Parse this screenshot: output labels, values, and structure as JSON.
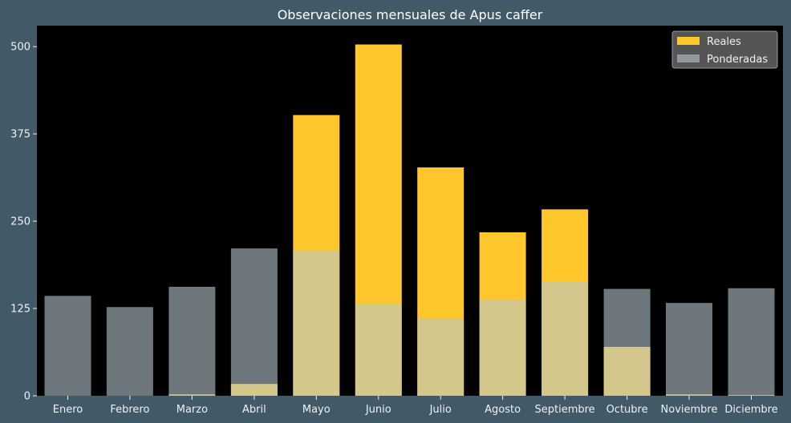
{
  "chart_data": {
    "type": "bar",
    "title": "Observaciones mensuales de Apus caffer",
    "xlabel": "",
    "ylabel": "",
    "categories": [
      "Enero",
      "Febrero",
      "Marzo",
      "Abril",
      "Mayo",
      "Junio",
      "Julio",
      "Agosto",
      "Septiembre",
      "Octubre",
      "Noviembre",
      "Diciembre"
    ],
    "series": [
      {
        "name": "Reales",
        "values": [
          0,
          0,
          2,
          17,
          402,
          503,
          327,
          234,
          267,
          70,
          2,
          1
        ],
        "color": "#ffc72c"
      },
      {
        "name": "Ponderadas",
        "values": [
          143,
          127,
          156,
          211,
          208,
          132,
          111,
          138,
          163,
          153,
          133,
          154
        ],
        "color": "#b7c7cd",
        "opacity": 0.6
      }
    ],
    "ylim": [
      0,
      530
    ],
    "yticks": [
      0,
      125,
      250,
      375,
      500
    ],
    "legend": "top-right",
    "grid": false,
    "colors": {
      "background": "#425a67",
      "plot_area": "#000000",
      "text": "#f0f0f0",
      "legend_bg": "#555555"
    }
  }
}
